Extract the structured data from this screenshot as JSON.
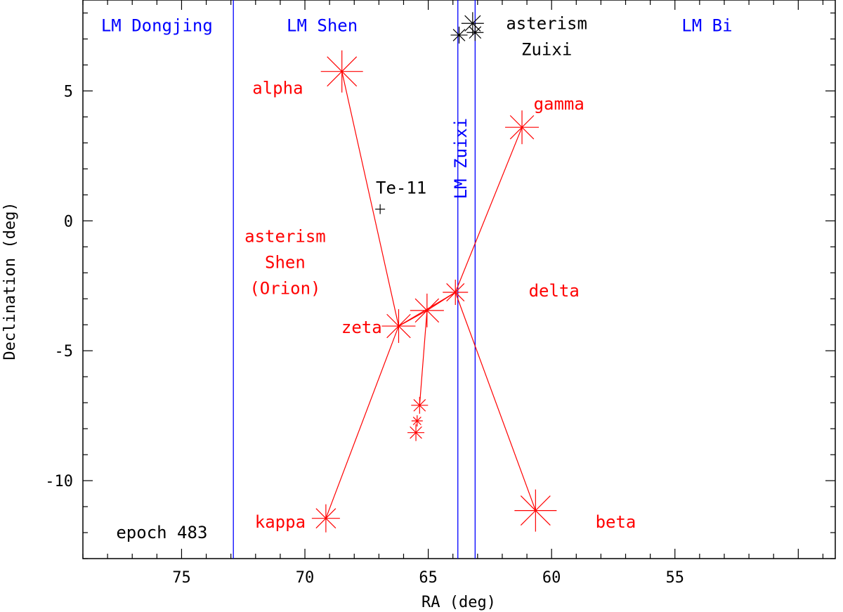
{
  "chart_data": {
    "type": "scatter",
    "xlabel": "RA (deg)",
    "ylabel": "Declination (deg)",
    "xlim": [
      79,
      48.5
    ],
    "ylim": [
      -13,
      8.5
    ],
    "x_ticks": [
      75,
      70,
      65,
      60,
      55
    ],
    "x_tick_labels": [
      "75",
      "70",
      "65",
      "60",
      "55"
    ],
    "y_ticks": [
      5,
      0,
      -5,
      -10
    ],
    "y_tick_labels": [
      "5",
      "0",
      "-5",
      "-10"
    ],
    "grid": false,
    "colors": {
      "stars": "#ff0000",
      "boundaries": "#0000ff",
      "other": "#000000"
    },
    "mansion_boundaries_ra": [
      72.9,
      63.8,
      63.1
    ],
    "mansion_labels": [
      {
        "text": "LM Dongjing",
        "ra": 76.0,
        "dec": 7.3
      },
      {
        "text": "LM Shen",
        "ra": 69.3,
        "dec": 7.3
      },
      {
        "text": "LM Bi",
        "ra": 53.7,
        "dec": 7.3
      },
      {
        "text": "LM Zuixi",
        "ra": 63.45,
        "dec": 2.4,
        "vertical": true
      }
    ],
    "stars": [
      {
        "name": "alpha",
        "ra": 68.5,
        "dec": 5.75,
        "size": 30,
        "label_ra": 71.1,
        "label_dec": 5.1
      },
      {
        "name": "gamma",
        "ra": 61.2,
        "dec": 3.6,
        "size": 24,
        "label_ra": 59.7,
        "label_dec": 4.5
      },
      {
        "name": "delta",
        "ra": 63.9,
        "dec": -2.75,
        "size": 18,
        "label_ra": 59.9,
        "label_dec": -2.7
      },
      {
        "name": "zeta",
        "ra": 66.2,
        "dec": -4.05,
        "size": 24,
        "label_ra": 67.7,
        "label_dec": -4.1
      },
      {
        "name": "epsilon",
        "ra": 65.05,
        "dec": -3.45,
        "size": 24,
        "label_ra": null,
        "label_dec": null
      },
      {
        "name": "kappa",
        "ra": 69.15,
        "dec": -11.45,
        "size": 20,
        "label_ra": 71.0,
        "label_dec": -11.6
      },
      {
        "name": "beta",
        "ra": 60.65,
        "dec": -11.15,
        "size": 30,
        "label_ra": 57.4,
        "label_dec": -11.6
      },
      {
        "name": "sword-1",
        "ra": 65.35,
        "dec": -7.1,
        "size": 12,
        "label_ra": null,
        "label_dec": null
      },
      {
        "name": "sword-2",
        "ra": 65.45,
        "dec": -7.7,
        "size": 8,
        "label_ra": null,
        "label_dec": null
      },
      {
        "name": "sword-3",
        "ra": 65.5,
        "dec": -8.15,
        "size": 12,
        "label_ra": null,
        "label_dec": null
      }
    ],
    "lines": [
      [
        "alpha",
        "zeta"
      ],
      [
        "zeta",
        "kappa"
      ],
      [
        "zeta",
        "epsilon"
      ],
      [
        "zeta",
        "delta"
      ],
      [
        "epsilon",
        "delta"
      ],
      [
        "epsilon",
        "sword-1"
      ],
      [
        "delta",
        "gamma"
      ],
      [
        "delta",
        "beta"
      ]
    ],
    "zuixi_stars": [
      {
        "ra": 63.2,
        "dec": 7.6,
        "size": 16
      },
      {
        "ra": 63.1,
        "dec": 7.25,
        "size": 12
      },
      {
        "ra": 63.75,
        "dec": 7.15,
        "size": 12
      }
    ],
    "te11": {
      "label": "Te-11",
      "ra": 66.95,
      "dec": 0.45
    },
    "annotations": [
      {
        "text": "asterism",
        "ra": 70.8,
        "dec": -0.6,
        "color": "#ff0000"
      },
      {
        "text": "Shen",
        "ra": 70.8,
        "dec": -1.6,
        "color": "#ff0000"
      },
      {
        "text": "(Orion)",
        "ra": 70.8,
        "dec": -2.6,
        "color": "#ff0000"
      },
      {
        "text": "asterism",
        "ra": 60.2,
        "dec": 7.6,
        "color": "#000000"
      },
      {
        "text": "Zuixi",
        "ra": 60.2,
        "dec": 6.6,
        "color": "#000000"
      },
      {
        "text": "epoch 483",
        "ra": 75.8,
        "dec": -12.0,
        "color": "#000000"
      }
    ]
  }
}
